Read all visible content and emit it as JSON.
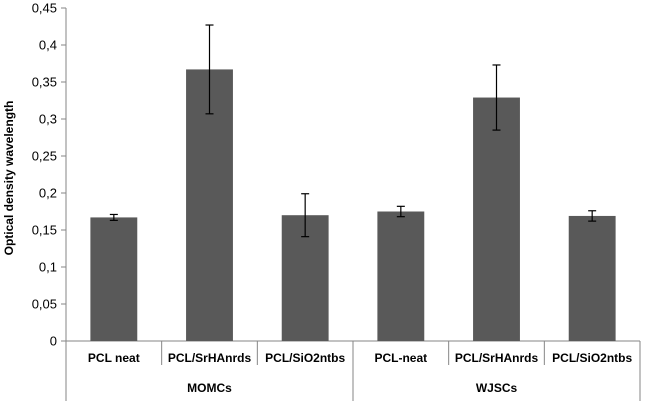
{
  "chart_data": {
    "type": "bar",
    "title": "",
    "xlabel": "",
    "ylabel": "Optical density wavelength",
    "ylim": [
      0,
      0.45
    ],
    "yticks": [
      "0",
      "0,05",
      "0,1",
      "0,15",
      "0,2",
      "0,25",
      "0,3",
      "0,35",
      "0,4",
      "0,45"
    ],
    "grid": false,
    "legend": "none",
    "bar_color": "#595959",
    "groups": [
      {
        "name": "MOMCs",
        "categories": [
          "PCL neat",
          "PCL/SrHAnrds",
          "PCL/SiO2ntbs"
        ],
        "values": [
          0.167,
          0.367,
          0.17
        ],
        "errors": [
          0.004,
          0.06,
          0.029
        ]
      },
      {
        "name": "WJSCs",
        "categories": [
          "PCL-neat",
          "PCL/SrHAnrds",
          "PCL/SiO2ntbs"
        ],
        "values": [
          0.175,
          0.329,
          0.169
        ],
        "errors": [
          0.007,
          0.044,
          0.007
        ]
      }
    ]
  }
}
